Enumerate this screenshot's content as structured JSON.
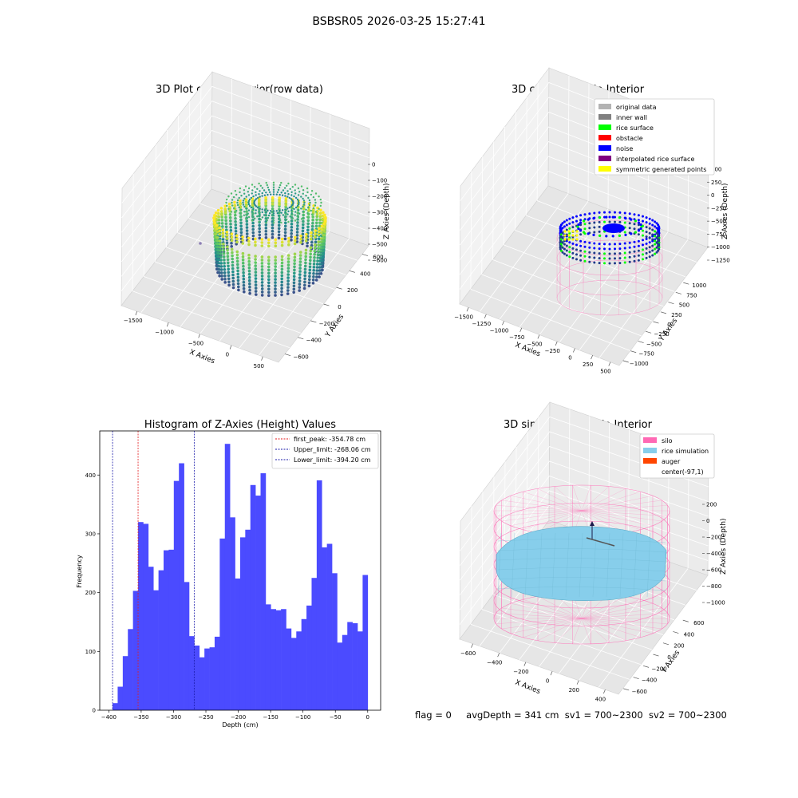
{
  "suptitle": "BSBSR05 2026-03-25 15:27:41",
  "colors": {
    "hist_bar": "#4b4bff",
    "first_peak": "#e41a1c",
    "limit_line": "#1a1aaa",
    "silo": "#ff69b4",
    "rice_simulation": "#87ceeb",
    "auger": "#ff4500",
    "original_data": "#b3b3b3",
    "inner_wall": "#808080",
    "rice_surface": "#00ff00",
    "obstacle": "#ff0000",
    "noise": "#0000ff",
    "interpolated_rice_surface": "#800080",
    "symmetric_generated_points": "#ffff00"
  },
  "status_line": {
    "flag": "flag = 0",
    "avg_depth": "avgDepth = 341 cm",
    "sv1": "sv1 = 700~2300",
    "sv2": "sv2 = 700~2300"
  },
  "chart_data": [
    {
      "type": "scatter3d",
      "title": "3D Plot of Silo Interior(row data)",
      "xlabel": "X Axies",
      "ylabel": "Y Axies",
      "zlabel": "Z Axies (Depth)",
      "x_ticks": [
        "−1500",
        "−1000",
        "−500",
        "0",
        "500"
      ],
      "y_ticks": [
        "−600",
        "−400",
        "−200",
        "0",
        "200",
        "400",
        "600"
      ],
      "z_ticks": [
        "0",
        "−100",
        "−200",
        "−300",
        "−400",
        "−500",
        "−600"
      ],
      "xlim": [
        -1700,
        600
      ],
      "ylim": [
        -650,
        650
      ],
      "zlim": [
        -650,
        20
      ],
      "colormap": "viridis"
    },
    {
      "type": "scatter3d",
      "title": "3D classify of Silo Interior",
      "xlabel": "X Axies",
      "ylabel": "Y Axies",
      "zlabel": "Z Axies (Depth)",
      "x_ticks": [
        "−1500",
        "−1250",
        "−1000",
        "−750",
        "−500",
        "−250",
        "0",
        "250",
        "500"
      ],
      "y_ticks": [
        "−1000",
        "−750",
        "−500",
        "−250",
        "0",
        "250",
        "500",
        "750",
        "1000"
      ],
      "z_ticks": [
        "500",
        "250",
        "0",
        "−250",
        "−500",
        "−750",
        "−1000",
        "−1250"
      ],
      "legend": [
        {
          "label": "original data",
          "color": "#b3b3b3"
        },
        {
          "label": "inner wall",
          "color": "#808080"
        },
        {
          "label": "rice surface",
          "color": "#00ff00"
        },
        {
          "label": "obstacle",
          "color": "#ff0000"
        },
        {
          "label": "noise",
          "color": "#0000ff"
        },
        {
          "label": "interpolated rice surface",
          "color": "#800080"
        },
        {
          "label": "symmetric generated points",
          "color": "#ffff00"
        }
      ],
      "legend_position": "upper right"
    },
    {
      "type": "bar",
      "title": "Histogram of Z-Axies (Height) Values",
      "xlabel": "Depth (cm)",
      "ylabel": "Frequency",
      "bin_start": -394.2,
      "bin_width": 7.885,
      "values": [
        12,
        40,
        92,
        138,
        203,
        320,
        317,
        244,
        204,
        238,
        272,
        273,
        390,
        420,
        218,
        126,
        110,
        90,
        105,
        107,
        125,
        292,
        453,
        328,
        224,
        294,
        307,
        383,
        365,
        403,
        180,
        172,
        170,
        172,
        139,
        123,
        134,
        155,
        178,
        225,
        391,
        277,
        283,
        233,
        115,
        128,
        150,
        148,
        134,
        230
      ],
      "xlim": [
        -414,
        20
      ],
      "ylim": [
        0,
        475
      ],
      "x_ticks": [
        -400,
        -350,
        -300,
        -250,
        -200,
        -150,
        -100,
        -50,
        0
      ],
      "x_tick_labels": [
        "−400",
        "−350",
        "−300",
        "−250",
        "−200",
        "−150",
        "−100",
        "−50",
        "0"
      ],
      "y_ticks": [
        0,
        100,
        200,
        300,
        400
      ],
      "vlines": [
        {
          "label": "first_peak: -354.78 cm",
          "x": -354.78,
          "color": "#e41a1c"
        },
        {
          "label": "Upper_limit: -268.06 cm",
          "x": -268.06,
          "color": "#1a1aaa"
        },
        {
          "label": "Lower_limit: -394.20 cm",
          "x": -394.2,
          "color": "#1a1aaa"
        }
      ],
      "legend_position": "upper right"
    },
    {
      "type": "surface3d",
      "title": "3D simulation of Silo Interior",
      "xlabel": "X Axies",
      "ylabel": "Y Axies",
      "zlabel": "Z Axies (Depth)",
      "x_ticks": [
        "−600",
        "−400",
        "−200",
        "0",
        "200",
        "400"
      ],
      "y_ticks": [
        "−600",
        "−400",
        "−200",
        "0",
        "200",
        "400",
        "600"
      ],
      "z_ticks": [
        "200",
        "0",
        "−200",
        "−400",
        "−600",
        "−800",
        "−1000"
      ],
      "legend": [
        {
          "label": "silo",
          "color": "#ff69b4"
        },
        {
          "label": "rice simulation",
          "color": "#87ceeb"
        },
        {
          "label": "auger",
          "color": "#ff4500"
        },
        {
          "label": "center(-97,1)",
          "color": ""
        }
      ],
      "legend_position": "upper right"
    }
  ]
}
